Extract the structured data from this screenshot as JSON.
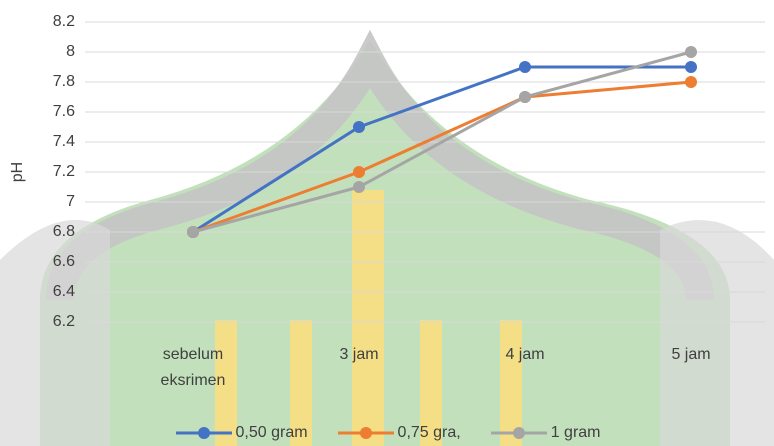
{
  "chart_data": {
    "type": "line",
    "y_label": "pH",
    "categories": [
      "sebelum eksrimen",
      "3 jam",
      "4 jam",
      "5 jam"
    ],
    "series": [
      {
        "name": "0,50 gram",
        "color": "#4472c4",
        "values": [
          6.8,
          7.5,
          7.9,
          7.9
        ]
      },
      {
        "name": "0,75 gra,",
        "color": "#ed7d31",
        "values": [
          6.8,
          7.2,
          7.7,
          7.8
        ]
      },
      {
        "name": "1 gram",
        "color": "#a5a5a5",
        "values": [
          6.8,
          7.1,
          7.7,
          8.0
        ]
      }
    ],
    "ylim": [
      6.2,
      8.2
    ],
    "yticks": [
      6.2,
      6.4,
      6.6,
      6.8,
      7,
      7.2,
      7.4,
      7.6,
      7.8,
      8,
      8.2
    ],
    "grid": true
  }
}
